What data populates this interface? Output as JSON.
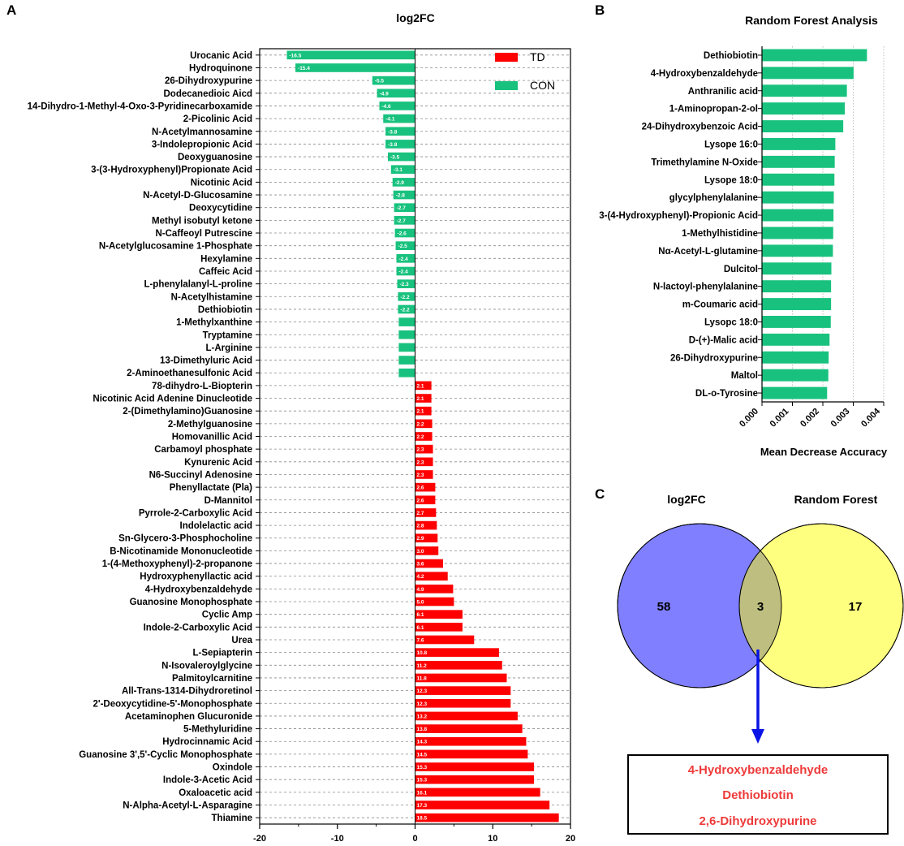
{
  "panels": {
    "a": "A",
    "b": "B",
    "c": "C"
  },
  "colors": {
    "td": "#ff0000",
    "con": "#18c27e",
    "set_log2fc": "#7f7fff",
    "set_rf": "#ffff7f",
    "overlap": "#bebe80",
    "arrow": "#0a14e6",
    "log2fc_title": "#2b3bd6",
    "rf_title": "#7c7200",
    "result_text": "#ee3a3a"
  },
  "chart_data": [
    {
      "type": "bar",
      "orientation": "horizontal",
      "title": "log2FC",
      "xlabel": "",
      "ylabel": "",
      "xlim": [
        -20,
        20
      ],
      "xticks": [
        -20,
        -10,
        0,
        10,
        20
      ],
      "legend": [
        {
          "name": "TD",
          "color": "#ff0000"
        },
        {
          "name": "CON",
          "color": "#18c27e"
        }
      ],
      "legend_position": "top-right",
      "gridlines": "dashed",
      "categories": [
        "Urocanic Acid",
        "Hydroquinone",
        "26-Dihydroxypurine",
        "Dodecanedioic Aicd",
        "14-Dihydro-1-Methyl-4-Oxo-3-Pyridinecarboxamide",
        "2-Picolinic Acid",
        "N-Acetylmannosamine",
        "3-Indolepropionic Acid",
        "Deoxyguanosine",
        "3-(3-Hydroxyphenyl)Propionate Acid",
        "Nicotinic Acid",
        "N-Acetyl-D-Glucosamine",
        "Deoxycytidine",
        "Methyl isobutyl ketone",
        "N-Caffeoyl Putrescine",
        "N-Acetylglucosamine 1-Phosphate",
        "Hexylamine",
        "Caffeic Acid",
        "L-phenylalanyl-L-proline",
        "N-Acetylhistamine",
        "Dethiobiotin",
        "1-Methylxanthine",
        "Tryptamine",
        "L-Arginine",
        "13-Dimethyluric Acid",
        "2-Aminoethanesulfonic Acid",
        "78-dihydro-L-Biopterin",
        "Nicotinic Acid Adenine Dinucleotide",
        "2-(Dimethylamino)Guanosine",
        "2-Methylguanosine",
        "Homovanillic Acid",
        "Carbamoyl phosphate",
        "Kynurenic Acid",
        "N6-Succinyl Adenosine",
        "Phenyllactate (Pla)",
        "D-Mannitol",
        "Pyrrole-2-Carboxylic Acid",
        "Indolelactic acid",
        "Sn-Glycero-3-Phosphocholine",
        "B-Nicotinamide Mononucleotide",
        "1-(4-Methoxyphenyl)-2-propanone",
        "Hydroxyphenyllactic acid",
        "4-Hydroxybenzaldehyde",
        "Guanosine Monophosphate",
        "Cyclic Amp",
        "Indole-2-Carboxylic Acid",
        "Urea",
        "L-Sepiapterin",
        "N-Isovaleroylglycine",
        "Palmitoylcarnitine",
        "All-Trans-1314-Dihydroretinol",
        "2'-Deoxycytidine-5'-Monophosphate",
        "Acetaminophen Glucuronide",
        "5-Methyluridine",
        "Hydrocinnamic Acid",
        "Guanosine 3',5'-Cyclic Monophosphate",
        "Oxindole",
        "Indole-3-Acetic Acid",
        "Oxaloacetic acid",
        "N-Alpha-Acetyl-L-Asparagine",
        "Thiamine"
      ],
      "values": [
        -16.5,
        -15.4,
        -5.5,
        -4.9,
        -4.6,
        -4.1,
        -3.8,
        -3.8,
        -3.5,
        -3.1,
        -2.9,
        -2.8,
        -2.7,
        -2.7,
        -2.6,
        -2.5,
        -2.4,
        -2.4,
        -2.3,
        -2.2,
        -2.2,
        -2.1,
        -2.1,
        -2.1,
        -2.1,
        -2.1,
        2.1,
        2.1,
        2.1,
        2.2,
        2.2,
        2.3,
        2.3,
        2.3,
        2.6,
        2.6,
        2.7,
        2.8,
        2.9,
        3.0,
        3.6,
        4.2,
        4.9,
        5.0,
        6.1,
        6.1,
        7.6,
        10.8,
        11.2,
        11.8,
        12.3,
        12.3,
        13.2,
        13.8,
        14.3,
        14.5,
        15.3,
        15.3,
        16.1,
        17.3,
        18.5
      ],
      "data_labels": [
        "-16.5",
        "-15.4",
        "-5.5",
        "-4.9",
        "-4.6",
        "-4.1",
        "-3.8",
        "-3.8",
        "-3.5",
        "-3.1",
        "-2.9",
        "-2.8",
        "-2.7",
        "-2.7",
        "-2.6",
        "-2.5",
        "-2.4",
        "-2.4",
        "-2.3",
        "-2.2",
        "-2.2",
        "",
        "",
        "",
        "",
        "",
        "2.1",
        "2.1",
        "2.1",
        "2.2",
        "2.2",
        "2.3",
        "2.3",
        "2.3",
        "2.6",
        "2.6",
        "2.7",
        "2.8",
        "2.9",
        "3.0",
        "3.6",
        "4.2",
        "4.9",
        "5.0",
        "6.1",
        "6.1",
        "7.6",
        "10.8",
        "11.2",
        "11.8",
        "12.3",
        "12.3",
        "13.2",
        "13.8",
        "14.3",
        "14.5",
        "15.3",
        "15.3",
        "16.1",
        "17.3",
        "18.5"
      ]
    },
    {
      "type": "bar",
      "orientation": "horizontal",
      "title": "Random Forest Analysis",
      "xlabel": "Mean Decrease Accuracy",
      "ylabel": "",
      "xlim": [
        0,
        0.004
      ],
      "xticks": [
        "0.000",
        "0.001",
        "0.002",
        "0.003",
        "0.004"
      ],
      "gridlines": "dotted",
      "categories": [
        "Dethiobiotin",
        "4-Hydroxybenzaldehyde",
        "Anthranilic acid",
        "1-Aminopropan-2-ol",
        "24-Dihydroxybenzoic Acid",
        "Lysope 16:0",
        "Trimethylamine N-Oxide",
        "Lysope 18:0",
        "glycylphenylalanine",
        "3-(4-Hydroxyphenyl)-Propionic Acid",
        "1-Methylhistidine",
        "Nα-Acetyl-L-glutamine",
        "Dulcitol",
        "N-lactoyl-phenylalanine",
        "m-Coumaric acid",
        "Lysopc 18:0",
        "D-(+)-Malic acid",
        "26-Dihydroxypurine",
        "Maltol",
        "DL-o-Tyrosine"
      ],
      "values": [
        0.00345,
        0.00301,
        0.00279,
        0.00272,
        0.00267,
        0.00241,
        0.00239,
        0.00238,
        0.00236,
        0.00235,
        0.00234,
        0.00233,
        0.00228,
        0.00227,
        0.00227,
        0.00226,
        0.00222,
        0.00219,
        0.00218,
        0.00214
      ]
    }
  ],
  "venn": {
    "left_title": "log2FC",
    "right_title": "Random Forest",
    "left_only": "58",
    "overlap": "3",
    "right_only": "17",
    "shared": [
      "4-Hydroxybenzaldehyde",
      "Dethiobiotin",
      "2,6-Dihydroxypurine"
    ]
  }
}
